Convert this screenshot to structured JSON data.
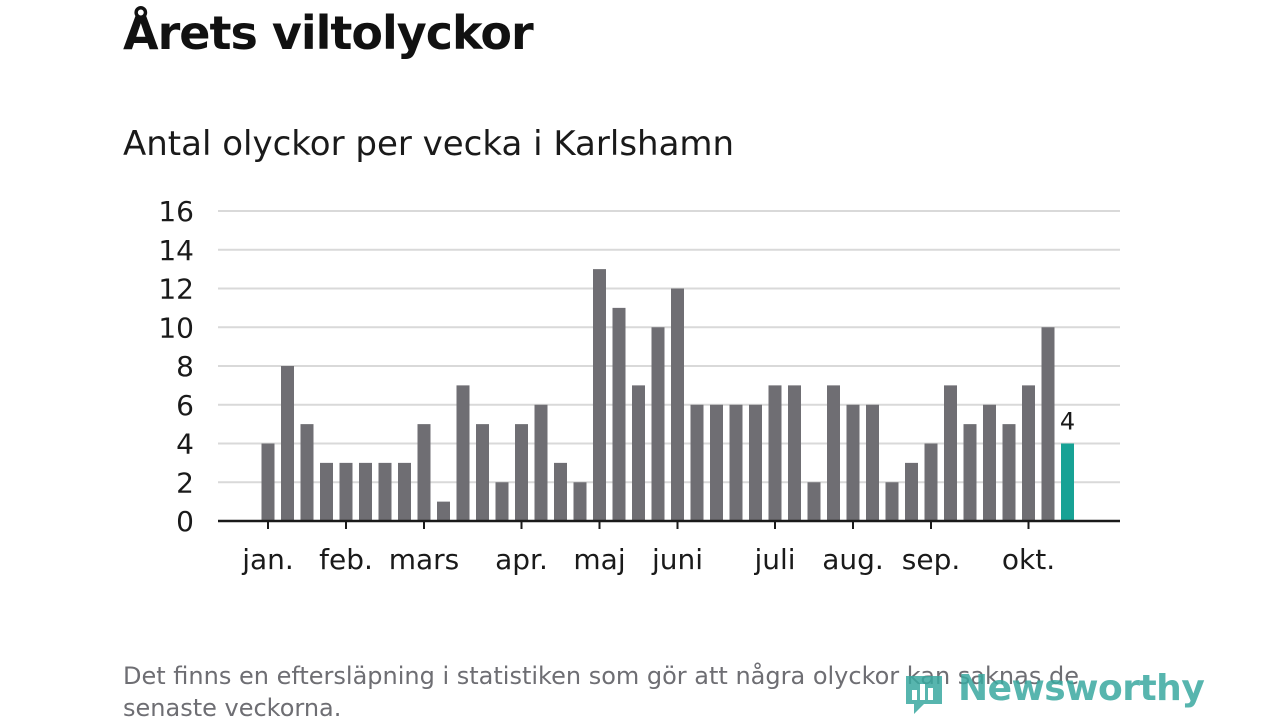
{
  "header": {
    "title": "Årets viltolyckor",
    "subtitle": "Antal olyckor per vecka i Karlshamn"
  },
  "footnote": "Det finns en eftersläpning i statistiken som gör att några olyckor kan saknas de senaste veckorna.",
  "brand": {
    "name": "Newsworthy",
    "color": "#3aa9a0"
  },
  "colors": {
    "bar": "#6f6e73",
    "highlight": "#17a295",
    "grid": "#d9d9d9",
    "axis": "#1a1a1a"
  },
  "chart_data": {
    "type": "bar",
    "x": [
      1,
      2,
      3,
      4,
      5,
      6,
      7,
      8,
      9,
      10,
      11,
      12,
      13,
      14,
      15,
      16,
      17,
      18,
      19,
      20,
      21,
      22,
      23,
      24,
      25,
      26,
      27,
      28,
      29,
      30,
      31,
      32,
      33,
      34,
      35,
      36,
      37,
      38,
      39,
      40,
      41,
      42
    ],
    "values": [
      4,
      8,
      5,
      3,
      3,
      3,
      3,
      3,
      5,
      1,
      7,
      5,
      2,
      5,
      6,
      3,
      2,
      13,
      11,
      7,
      10,
      12,
      6,
      6,
      6,
      6,
      7,
      7,
      2,
      7,
      6,
      6,
      2,
      3,
      4,
      7,
      5,
      6,
      5,
      7,
      10,
      4
    ],
    "highlight_index": 41,
    "highlight_label": "4",
    "ylim": [
      0,
      16
    ],
    "yticks": [
      "0",
      "2",
      "4",
      "6",
      "8",
      "10",
      "12",
      "14",
      "16"
    ],
    "month_labels": [
      {
        "label": "jan.",
        "week": 1
      },
      {
        "label": "feb.",
        "week": 5
      },
      {
        "label": "mars",
        "week": 9
      },
      {
        "label": "apr.",
        "week": 14
      },
      {
        "label": "maj",
        "week": 18
      },
      {
        "label": "juni",
        "week": 22
      },
      {
        "label": "juli",
        "week": 27
      },
      {
        "label": "aug.",
        "week": 31
      },
      {
        "label": "sep.",
        "week": 35
      },
      {
        "label": "okt.",
        "week": 40
      }
    ],
    "grid": true
  }
}
